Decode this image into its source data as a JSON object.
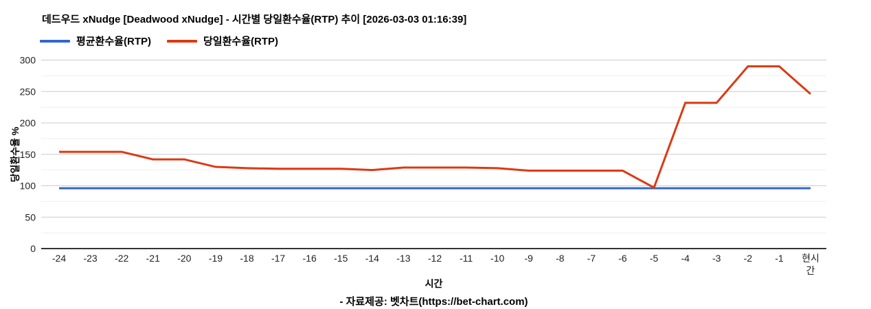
{
  "header": {
    "title": "데드우드 xNudge [Deadwood xNudge] - 시간별 당일환수율(RTP) 추이 [2026-03-03 01:16:39]"
  },
  "chart_data": {
    "type": "line",
    "title": "데드우드 xNudge [Deadwood xNudge] - 시간별 당일환수율(RTP) 추이 [2026-03-03 01:16:39]",
    "xlabel": "시간",
    "ylabel": "당일환수율 %",
    "ylim": [
      0,
      300
    ],
    "yticks": [
      0,
      50,
      100,
      150,
      200,
      250,
      300
    ],
    "minor_grid_step": 25,
    "grid": true,
    "legend_position": "top-left",
    "categories": [
      "-24",
      "-23",
      "-22",
      "-21",
      "-20",
      "-19",
      "-18",
      "-17",
      "-16",
      "-15",
      "-14",
      "-13",
      "-12",
      "-11",
      "-10",
      "-9",
      "-8",
      "-7",
      "-6",
      "-5",
      "-4",
      "-3",
      "-2",
      "-1",
      "현시간"
    ],
    "series": [
      {
        "name": "평균환수율(RTP)",
        "color": "#3366cc",
        "values": [
          96,
          96,
          96,
          96,
          96,
          96,
          96,
          96,
          96,
          96,
          96,
          96,
          96,
          96,
          96,
          96,
          96,
          96,
          96,
          96,
          96,
          96,
          96,
          96,
          96
        ]
      },
      {
        "name": "당일환수율(RTP)",
        "color": "#dc3912",
        "values": [
          154,
          154,
          154,
          142,
          142,
          130,
          128,
          127,
          127,
          127,
          125,
          129,
          129,
          129,
          128,
          124,
          124,
          124,
          124,
          97,
          232,
          232,
          290,
          290,
          246
        ]
      }
    ]
  },
  "footer": {
    "source": "- 자료제공: 벳차트(https://bet-chart.com)"
  }
}
